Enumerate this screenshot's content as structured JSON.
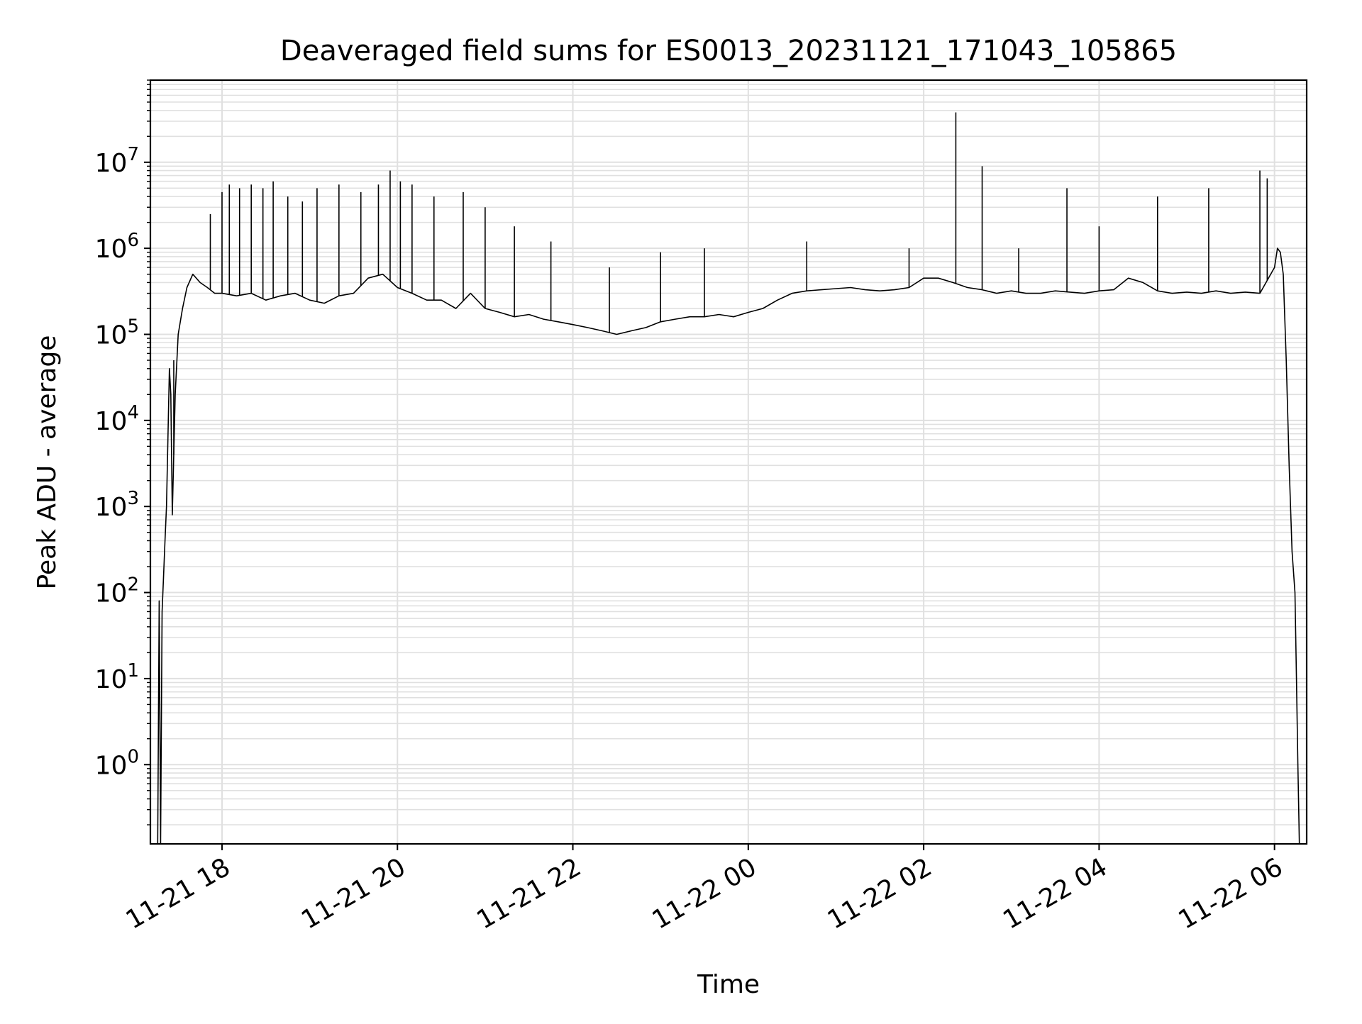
{
  "chart_data": {
    "type": "line",
    "title": "Deaveraged field sums for ES0013_20231121_171043_105865",
    "xlabel": "Time",
    "ylabel": "Peak ADU - average",
    "yscale": "log",
    "xlim": [
      "2023-11-21 17:11",
      "2023-11-22 06:22"
    ],
    "ylim": [
      0.12,
      90000000
    ],
    "grid": true,
    "legend": "none",
    "colors": {
      "line": "#000000",
      "grid": "#e0e0e0",
      "axes": "#000000"
    },
    "x_ticks": [
      {
        "t": "2023-11-21 18:00",
        "label": "11-21 18"
      },
      {
        "t": "2023-11-21 20:00",
        "label": "11-21 20"
      },
      {
        "t": "2023-11-21 22:00",
        "label": "11-21 22"
      },
      {
        "t": "2023-11-22 00:00",
        "label": "11-22 00"
      },
      {
        "t": "2023-11-22 02:00",
        "label": "11-22 02"
      },
      {
        "t": "2023-11-22 04:00",
        "label": "11-22 04"
      },
      {
        "t": "2023-11-22 06:00",
        "label": "11-22 06"
      }
    ],
    "y_ticks": [
      {
        "value": 1,
        "base": "10",
        "exp": "0"
      },
      {
        "value": 10,
        "base": "10",
        "exp": "1"
      },
      {
        "value": 100,
        "base": "10",
        "exp": "2"
      },
      {
        "value": 1000,
        "base": "10",
        "exp": "3"
      },
      {
        "value": 10000,
        "base": "10",
        "exp": "4"
      },
      {
        "value": 100000,
        "base": "10",
        "exp": "5"
      },
      {
        "value": 1000000,
        "base": "10",
        "exp": "6"
      },
      {
        "value": 10000000,
        "base": "10",
        "exp": "7"
      }
    ],
    "series": [
      {
        "x": [
          "2023-11-21 17:16",
          "2023-11-21 17:17",
          "2023-11-21 17:18",
          "2023-11-21 17:19",
          "2023-11-21 17:20",
          "2023-11-21 17:21",
          "2023-11-21 17:22",
          "2023-11-21 17:24",
          "2023-11-21 17:25",
          "2023-11-21 17:26",
          "2023-11-21 17:28",
          "2023-11-21 17:30",
          "2023-11-21 17:33",
          "2023-11-21 17:36",
          "2023-11-21 17:40",
          "2023-11-21 17:45",
          "2023-11-21 17:50",
          "2023-11-21 17:55",
          "2023-11-21 18:00",
          "2023-11-21 18:10",
          "2023-11-21 18:20",
          "2023-11-21 18:30",
          "2023-11-21 18:40",
          "2023-11-21 18:50",
          "2023-11-21 19:00",
          "2023-11-21 19:10",
          "2023-11-21 19:20",
          "2023-11-21 19:30",
          "2023-11-21 19:40",
          "2023-11-21 19:50",
          "2023-11-21 20:00",
          "2023-11-21 20:10",
          "2023-11-21 20:20",
          "2023-11-21 20:30",
          "2023-11-21 20:40",
          "2023-11-21 20:50",
          "2023-11-21 21:00",
          "2023-11-21 21:10",
          "2023-11-21 21:20",
          "2023-11-21 21:30",
          "2023-11-21 21:40",
          "2023-11-21 21:50",
          "2023-11-21 22:00",
          "2023-11-21 22:10",
          "2023-11-21 22:20",
          "2023-11-21 22:30",
          "2023-11-21 22:40",
          "2023-11-21 22:50",
          "2023-11-21 23:00",
          "2023-11-21 23:10",
          "2023-11-21 23:20",
          "2023-11-21 23:30",
          "2023-11-21 23:40",
          "2023-11-21 23:50",
          "2023-11-22 00:00",
          "2023-11-22 00:10",
          "2023-11-22 00:20",
          "2023-11-22 00:30",
          "2023-11-22 00:40",
          "2023-11-22 00:50",
          "2023-11-22 01:00",
          "2023-11-22 01:10",
          "2023-11-22 01:20",
          "2023-11-22 01:30",
          "2023-11-22 01:40",
          "2023-11-22 01:50",
          "2023-11-22 02:00",
          "2023-11-22 02:10",
          "2023-11-22 02:20",
          "2023-11-22 02:30",
          "2023-11-22 02:40",
          "2023-11-22 02:50",
          "2023-11-22 03:00",
          "2023-11-22 03:10",
          "2023-11-22 03:20",
          "2023-11-22 03:30",
          "2023-11-22 03:40",
          "2023-11-22 03:50",
          "2023-11-22 04:00",
          "2023-11-22 04:10",
          "2023-11-22 04:20",
          "2023-11-22 04:30",
          "2023-11-22 04:40",
          "2023-11-22 04:50",
          "2023-11-22 05:00",
          "2023-11-22 05:10",
          "2023-11-22 05:20",
          "2023-11-22 05:30",
          "2023-11-22 05:40",
          "2023-11-22 05:50",
          "2023-11-22 06:00",
          "2023-11-22 06:02",
          "2023-11-22 06:04",
          "2023-11-22 06:06",
          "2023-11-22 06:08",
          "2023-11-22 06:10",
          "2023-11-22 06:12",
          "2023-11-22 06:14",
          "2023-11-22 06:15",
          "2023-11-22 06:16",
          "2023-11-22 06:17"
        ],
        "y": [
          0.12,
          80,
          0.12,
          60,
          150,
          400,
          1000,
          40000,
          20000,
          800,
          20000,
          100000,
          200000,
          350000,
          500000,
          400000,
          350000,
          300000,
          300000,
          280000,
          300000,
          250000,
          280000,
          300000,
          250000,
          230000,
          280000,
          300000,
          450000,
          500000,
          350000,
          300000,
          250000,
          250000,
          200000,
          300000,
          200000,
          180000,
          160000,
          170000,
          150000,
          140000,
          130000,
          120000,
          110000,
          100000,
          110000,
          120000,
          140000,
          150000,
          160000,
          160000,
          170000,
          160000,
          180000,
          200000,
          250000,
          300000,
          320000,
          330000,
          340000,
          350000,
          330000,
          320000,
          330000,
          350000,
          450000,
          450000,
          400000,
          350000,
          330000,
          300000,
          320000,
          300000,
          300000,
          320000,
          310000,
          300000,
          320000,
          330000,
          450000,
          400000,
          320000,
          300000,
          310000,
          300000,
          320000,
          300000,
          310000,
          300000,
          600000,
          1000000,
          900000,
          500000,
          50000,
          3000,
          300,
          100,
          10,
          1,
          0.12
        ]
      }
    ],
    "spikes": [
      {
        "x": "2023-11-21 17:27",
        "y": 50000
      },
      {
        "x": "2023-11-21 17:52",
        "y": 2500000
      },
      {
        "x": "2023-11-21 18:00",
        "y": 4500000
      },
      {
        "x": "2023-11-21 18:05",
        "y": 5500000
      },
      {
        "x": "2023-11-21 18:12",
        "y": 5000000
      },
      {
        "x": "2023-11-21 18:20",
        "y": 5500000
      },
      {
        "x": "2023-11-21 18:28",
        "y": 5000000
      },
      {
        "x": "2023-11-21 18:35",
        "y": 6000000
      },
      {
        "x": "2023-11-21 18:45",
        "y": 4000000
      },
      {
        "x": "2023-11-21 18:55",
        "y": 3500000
      },
      {
        "x": "2023-11-21 19:05",
        "y": 5000000
      },
      {
        "x": "2023-11-21 19:20",
        "y": 5500000
      },
      {
        "x": "2023-11-21 19:35",
        "y": 4500000
      },
      {
        "x": "2023-11-21 19:47",
        "y": 5500000
      },
      {
        "x": "2023-11-21 19:55",
        "y": 8000000
      },
      {
        "x": "2023-11-21 20:02",
        "y": 6000000
      },
      {
        "x": "2023-11-21 20:10",
        "y": 5500000
      },
      {
        "x": "2023-11-21 20:25",
        "y": 4000000
      },
      {
        "x": "2023-11-21 20:45",
        "y": 4500000
      },
      {
        "x": "2023-11-21 21:00",
        "y": 3000000
      },
      {
        "x": "2023-11-21 21:20",
        "y": 1800000
      },
      {
        "x": "2023-11-21 21:45",
        "y": 1200000
      },
      {
        "x": "2023-11-21 22:25",
        "y": 600000
      },
      {
        "x": "2023-11-21 23:00",
        "y": 900000
      },
      {
        "x": "2023-11-21 23:30",
        "y": 1000000
      },
      {
        "x": "2023-11-22 00:40",
        "y": 1200000
      },
      {
        "x": "2023-11-22 01:50",
        "y": 1000000
      },
      {
        "x": "2023-11-22 02:22",
        "y": 38000000
      },
      {
        "x": "2023-11-22 02:40",
        "y": 9000000
      },
      {
        "x": "2023-11-22 03:05",
        "y": 1000000
      },
      {
        "x": "2023-11-22 03:38",
        "y": 5000000
      },
      {
        "x": "2023-11-22 04:00",
        "y": 1800000
      },
      {
        "x": "2023-11-22 04:40",
        "y": 4000000
      },
      {
        "x": "2023-11-22 05:15",
        "y": 5000000
      },
      {
        "x": "2023-11-22 05:50",
        "y": 8000000
      },
      {
        "x": "2023-11-22 05:55",
        "y": 6500000
      }
    ]
  }
}
